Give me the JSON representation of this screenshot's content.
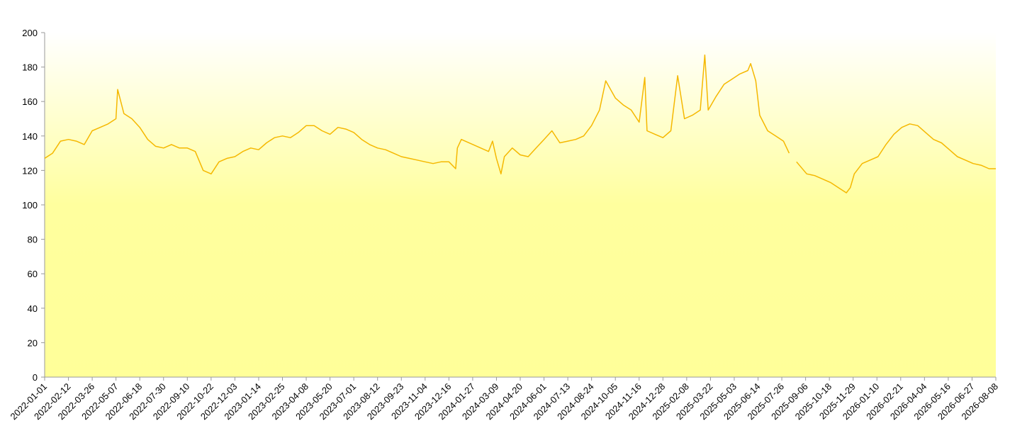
{
  "chart_data": {
    "type": "line",
    "color": "#f5b800",
    "x": [
      "2022-01-01",
      "2022-01-15",
      "2022-01-29",
      "2022-02-12",
      "2022-02-26",
      "2022-03-12",
      "2022-03-26",
      "2022-04-09",
      "2022-04-23",
      "2022-05-07",
      "2022-05-10",
      "2022-05-21",
      "2022-06-04",
      "2022-06-18",
      "2022-07-02",
      "2022-07-16",
      "2022-07-30",
      "2022-08-13",
      "2022-08-27",
      "2022-09-10",
      "2022-09-24",
      "2022-10-08",
      "2022-10-22",
      "2022-11-05",
      "2022-11-19",
      "2022-12-03",
      "2022-12-17",
      "2022-12-31",
      "2023-01-14",
      "2023-01-28",
      "2023-02-11",
      "2023-02-25",
      "2023-03-11",
      "2023-03-25",
      "2023-04-08",
      "2023-04-22",
      "2023-05-06",
      "2023-05-20",
      "2023-06-03",
      "2023-06-17",
      "2023-07-01",
      "2023-07-15",
      "2023-07-29",
      "2023-08-12",
      "2023-08-26",
      "2023-09-09",
      "2023-09-23",
      "2023-10-07",
      "2023-10-21",
      "2023-11-04",
      "2023-11-18",
      "2023-12-02",
      "2023-12-16",
      "2023-12-28",
      "2023-12-31",
      "2024-01-07",
      "2024-02-24",
      "2024-03-02",
      "2024-03-09",
      "2024-03-17",
      "2024-03-23",
      "2024-04-06",
      "2024-04-20",
      "2024-05-04",
      "2024-05-18",
      "2024-06-01",
      "2024-06-15",
      "2024-06-29",
      "2024-07-13",
      "2024-07-27",
      "2024-08-10",
      "2024-08-24",
      "2024-09-07",
      "2024-09-18",
      "2024-10-05",
      "2024-10-19",
      "2024-11-02",
      "2024-11-16",
      "2024-11-26",
      "2024-11-30",
      "2024-12-14",
      "2024-12-28",
      "2025-01-11",
      "2025-01-23",
      "2025-02-04",
      "2025-02-18",
      "2025-03-04",
      "2025-03-12",
      "2025-03-18",
      "2025-04-01",
      "2025-04-15",
      "2025-04-29",
      "2025-05-13",
      "2025-05-27",
      "2025-06-01",
      "2025-06-10",
      "2025-06-17",
      "2025-07-01",
      "2025-07-15",
      "2025-07-29",
      "2025-08-08",
      "2025-08-15",
      "2025-08-21",
      "2025-09-08",
      "2025-09-22",
      "2025-10-06",
      "2025-10-20",
      "2025-11-03",
      "2025-11-17",
      "2025-11-24",
      "2025-12-01",
      "2025-12-15",
      "2025-12-29",
      "2026-01-12",
      "2026-01-26",
      "2026-02-09",
      "2026-02-23",
      "2026-03-09",
      "2026-03-23",
      "2026-04-06",
      "2026-04-20",
      "2026-05-04",
      "2026-05-18",
      "2026-06-01",
      "2026-06-15",
      "2026-06-29",
      "2026-07-13",
      "2026-07-27",
      "2026-08-08"
    ],
    "values": [
      127,
      130,
      137,
      138,
      137,
      135,
      143,
      145,
      147,
      150,
      167,
      153,
      150,
      145,
      138,
      134,
      133,
      135,
      133,
      133,
      131,
      120,
      118,
      125,
      127,
      128,
      131,
      133,
      132,
      136,
      139,
      140,
      139,
      142,
      146,
      146,
      143,
      141,
      145,
      144,
      142,
      138,
      135,
      133,
      132,
      130,
      128,
      127,
      126,
      125,
      124,
      125,
      125,
      121,
      133,
      138,
      131,
      137,
      127,
      118,
      128,
      133,
      129,
      128,
      133,
      138,
      143,
      136,
      137,
      138,
      140,
      146,
      155,
      172,
      162,
      158,
      155,
      148,
      174,
      143,
      141,
      139,
      143,
      175,
      150,
      152,
      155,
      187,
      155,
      163,
      170,
      173,
      176,
      178,
      182,
      172,
      152,
      143,
      140,
      137,
      130,
      null,
      125,
      118,
      117,
      115,
      113,
      110,
      107,
      110,
      118,
      124,
      126,
      128,
      135,
      141,
      145,
      147,
      146,
      142,
      138,
      136,
      132,
      128,
      126,
      124,
      123,
      121,
      121
    ],
    "xticks": [
      "2022-01-01",
      "2022-02-12",
      "2022-03-26",
      "2022-05-07",
      "2022-06-18",
      "2022-07-30",
      "2022-09-10",
      "2022-10-22",
      "2022-12-03",
      "2023-01-14",
      "2023-02-25",
      "2023-04-08",
      "2023-05-20",
      "2023-07-01",
      "2023-08-12",
      "2023-09-23",
      "2023-11-04",
      "2023-12-16",
      "2024-01-27",
      "2024-03-09",
      "2024-04-20",
      "2024-06-01",
      "2024-07-13",
      "2024-08-24",
      "2024-10-05",
      "2024-11-16",
      "2024-12-28",
      "2025-02-08",
      "2025-03-22",
      "2025-05-03",
      "2025-06-14",
      "2025-07-26",
      "2025-09-06",
      "2025-10-18",
      "2025-11-29",
      "2026-01-10",
      "2026-02-21",
      "2026-04-04",
      "2026-05-16",
      "2026-06-27",
      "2026-08-08"
    ],
    "ylim": [
      0,
      200
    ],
    "yticks": [
      0,
      20,
      40,
      60,
      80,
      100,
      120,
      140,
      160,
      180,
      200
    ]
  }
}
